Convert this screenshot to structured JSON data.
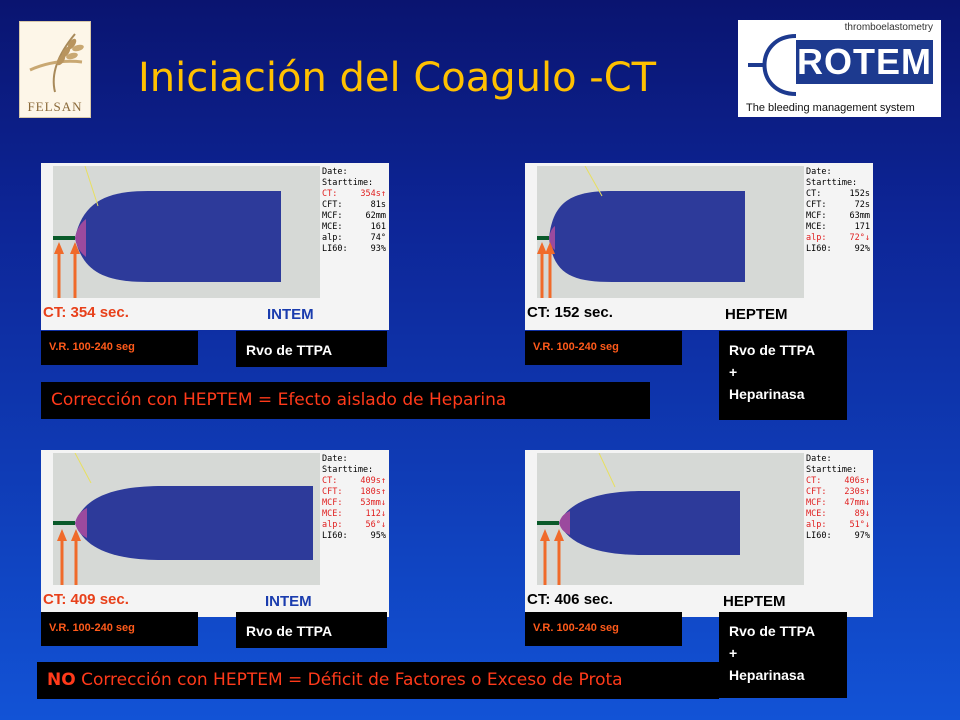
{
  "header": {
    "title": "Iniciación del Coagulo -CT",
    "left_logo_text": "FELSAN",
    "right_logo_top": "thromboelastometry",
    "right_logo_brand": "ROTEM",
    "right_logo_tagline": "The bleeding management system"
  },
  "panels": [
    {
      "ct_label": "CT: 354 sec.",
      "test": "INTEM",
      "test_color": "#1a3cae",
      "stats": [
        {
          "k": "Date:",
          "v": "",
          "c": "#000"
        },
        {
          "k": "Starttime:",
          "v": "",
          "c": "#000"
        },
        {
          "k": "CT:",
          "v": "354s↑",
          "c": "#e02020"
        },
        {
          "k": "CFT:",
          "v": "81s",
          "c": "#000"
        },
        {
          "k": "MCF:",
          "v": "62mm",
          "c": "#000"
        },
        {
          "k": "MCE:",
          "v": "161",
          "c": "#000"
        },
        {
          "k": "alp:",
          "v": "74°",
          "c": "#000"
        },
        {
          "k": "LI60:",
          "v": "93%",
          "c": "#000"
        }
      ]
    },
    {
      "ct_label": "CT: 152 sec.",
      "test": "HEPTEM",
      "test_color": "#000000",
      "stats": [
        {
          "k": "Date:",
          "v": "",
          "c": "#000"
        },
        {
          "k": "Starttime:",
          "v": "",
          "c": "#000"
        },
        {
          "k": "CT:",
          "v": "152s",
          "c": "#000"
        },
        {
          "k": "CFT:",
          "v": "72s",
          "c": "#000"
        },
        {
          "k": "MCF:",
          "v": "63mm",
          "c": "#000"
        },
        {
          "k": "MCE:",
          "v": "171",
          "c": "#000"
        },
        {
          "k": "alp:",
          "v": "72°↓",
          "c": "#e02020"
        },
        {
          "k": "LI60:",
          "v": "92%",
          "c": "#000"
        }
      ]
    },
    {
      "ct_label": "CT: 409 sec.",
      "test": "INTEM",
      "test_color": "#1a3cae",
      "stats": [
        {
          "k": "Date:",
          "v": "",
          "c": "#000"
        },
        {
          "k": "Starttime:",
          "v": "",
          "c": "#000"
        },
        {
          "k": "CT:",
          "v": "409s↑",
          "c": "#e02020"
        },
        {
          "k": "CFT:",
          "v": "180s↑",
          "c": "#e02020"
        },
        {
          "k": "MCF:",
          "v": "53mm↓",
          "c": "#e02020"
        },
        {
          "k": "MCE:",
          "v": "112↓",
          "c": "#e02020"
        },
        {
          "k": "alp:",
          "v": "56°↓",
          "c": "#e02020"
        },
        {
          "k": "LI60:",
          "v": "95%",
          "c": "#000"
        }
      ]
    },
    {
      "ct_label": "CT: 406 sec.",
      "test": "HEPTEM",
      "test_color": "#000000",
      "stats": [
        {
          "k": "Date:",
          "v": "",
          "c": "#000"
        },
        {
          "k": "Starttime:",
          "v": "",
          "c": "#000"
        },
        {
          "k": "CT:",
          "v": "406s↑",
          "c": "#e02020"
        },
        {
          "k": "CFT:",
          "v": "230s↑",
          "c": "#e02020"
        },
        {
          "k": "MCF:",
          "v": "47mm↓",
          "c": "#e02020"
        },
        {
          "k": "MCE:",
          "v": "89↓",
          "c": "#e02020"
        },
        {
          "k": "alp:",
          "v": "51°↓",
          "c": "#e02020"
        },
        {
          "k": "LI60:",
          "v": "97%",
          "c": "#000"
        }
      ]
    }
  ],
  "ref_range": "V.R. 100-240 seg",
  "rvo_single": "Rvo de TTPA",
  "rvo_multi": [
    "Rvo de TTPA",
    "+",
    "Heparinasa"
  ],
  "banner1": {
    "text": "Corrección con HEPTEM = Efecto aislado de Heparina"
  },
  "banner2": {
    "bold": "NO",
    "text": " Corrección con HEPTEM = Déficit de Factores o Exceso de Prota"
  },
  "colors": {
    "title": "#ffc000",
    "curve": "#2d3a9a",
    "arrow": "#f06a2a",
    "banner_text": "#ff3a1a"
  }
}
